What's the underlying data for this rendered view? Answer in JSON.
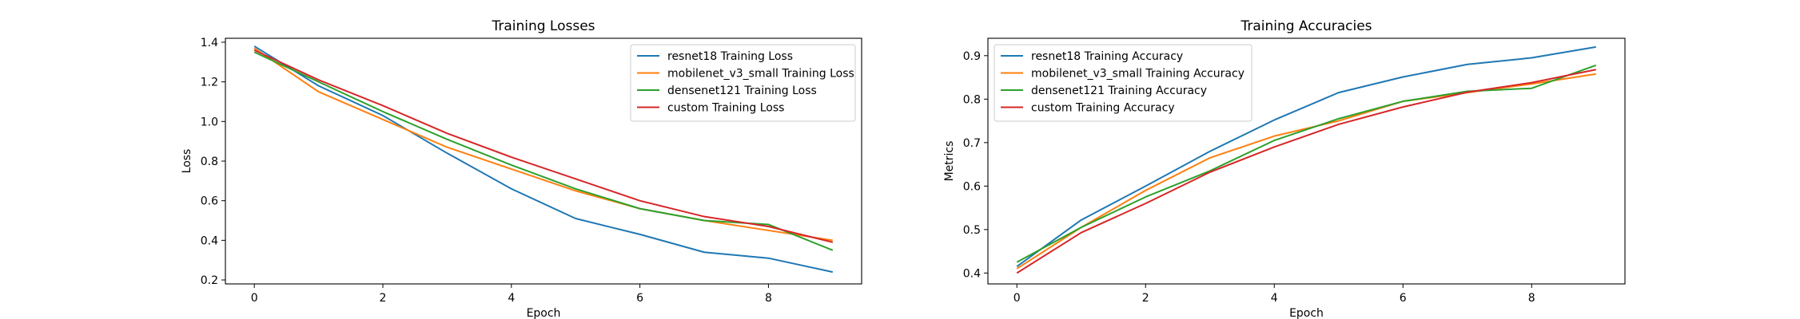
{
  "chart_data": [
    {
      "type": "line",
      "title": "Training Losses",
      "xlabel": "Epoch",
      "ylabel": "Loss",
      "xlim": [
        -0.45,
        9.45
      ],
      "ylim": [
        0.18,
        1.42
      ],
      "xticks": [
        "0",
        "2",
        "4",
        "6",
        "8"
      ],
      "yticks": [
        "0.2",
        "0.4",
        "0.6",
        "0.8",
        "1.0",
        "1.2",
        "1.4"
      ],
      "grid": false,
      "legend_position": "top-right",
      "x": [
        0,
        1,
        2,
        3,
        4,
        5,
        6,
        7,
        8,
        9
      ],
      "series": [
        {
          "name": "resnet18 Training Loss",
          "color": "#1f77b4",
          "values": [
            1.38,
            1.18,
            1.03,
            0.84,
            0.66,
            0.51,
            0.43,
            0.34,
            0.31,
            0.24
          ]
        },
        {
          "name": "mobilenet_v3_small Training Loss",
          "color": "#ff7f0e",
          "values": [
            1.37,
            1.15,
            1.01,
            0.87,
            0.76,
            0.65,
            0.56,
            0.5,
            0.45,
            0.4
          ]
        },
        {
          "name": "densenet121 Training Loss",
          "color": "#2ca02c",
          "values": [
            1.35,
            1.2,
            1.05,
            0.91,
            0.78,
            0.66,
            0.56,
            0.5,
            0.48,
            0.35
          ]
        },
        {
          "name": "custom Training Loss",
          "color": "#d62728",
          "values": [
            1.36,
            1.21,
            1.08,
            0.94,
            0.82,
            0.71,
            0.6,
            0.52,
            0.47,
            0.39
          ]
        }
      ]
    },
    {
      "type": "line",
      "title": "Training Accuracies",
      "xlabel": "Epoch",
      "ylabel": "Metrics",
      "xlim": [
        -0.45,
        9.45
      ],
      "ylim": [
        0.375,
        0.94
      ],
      "xticks": [
        "0",
        "2",
        "4",
        "6",
        "8"
      ],
      "yticks": [
        "0.4",
        "0.5",
        "0.6",
        "0.7",
        "0.8",
        "0.9"
      ],
      "grid": false,
      "legend_position": "top-left",
      "x": [
        0,
        1,
        2,
        3,
        4,
        5,
        6,
        7,
        8,
        9
      ],
      "series": [
        {
          "name": "resnet18 Training Accuracy",
          "color": "#1f77b4",
          "values": [
            0.415,
            0.522,
            0.6,
            0.68,
            0.752,
            0.815,
            0.851,
            0.88,
            0.895,
            0.92
          ]
        },
        {
          "name": "mobilenet_v3_small Training Accuracy",
          "color": "#ff7f0e",
          "values": [
            0.41,
            0.505,
            0.59,
            0.665,
            0.715,
            0.75,
            0.795,
            0.815,
            0.835,
            0.858
          ]
        },
        {
          "name": "densenet121 Training Accuracy",
          "color": "#2ca02c",
          "values": [
            0.425,
            0.505,
            0.575,
            0.635,
            0.705,
            0.755,
            0.795,
            0.818,
            0.825,
            0.878
          ]
        },
        {
          "name": "custom Training Accuracy",
          "color": "#d62728",
          "values": [
            0.4,
            0.493,
            0.56,
            0.632,
            0.69,
            0.742,
            0.782,
            0.816,
            0.838,
            0.868
          ]
        }
      ]
    }
  ]
}
